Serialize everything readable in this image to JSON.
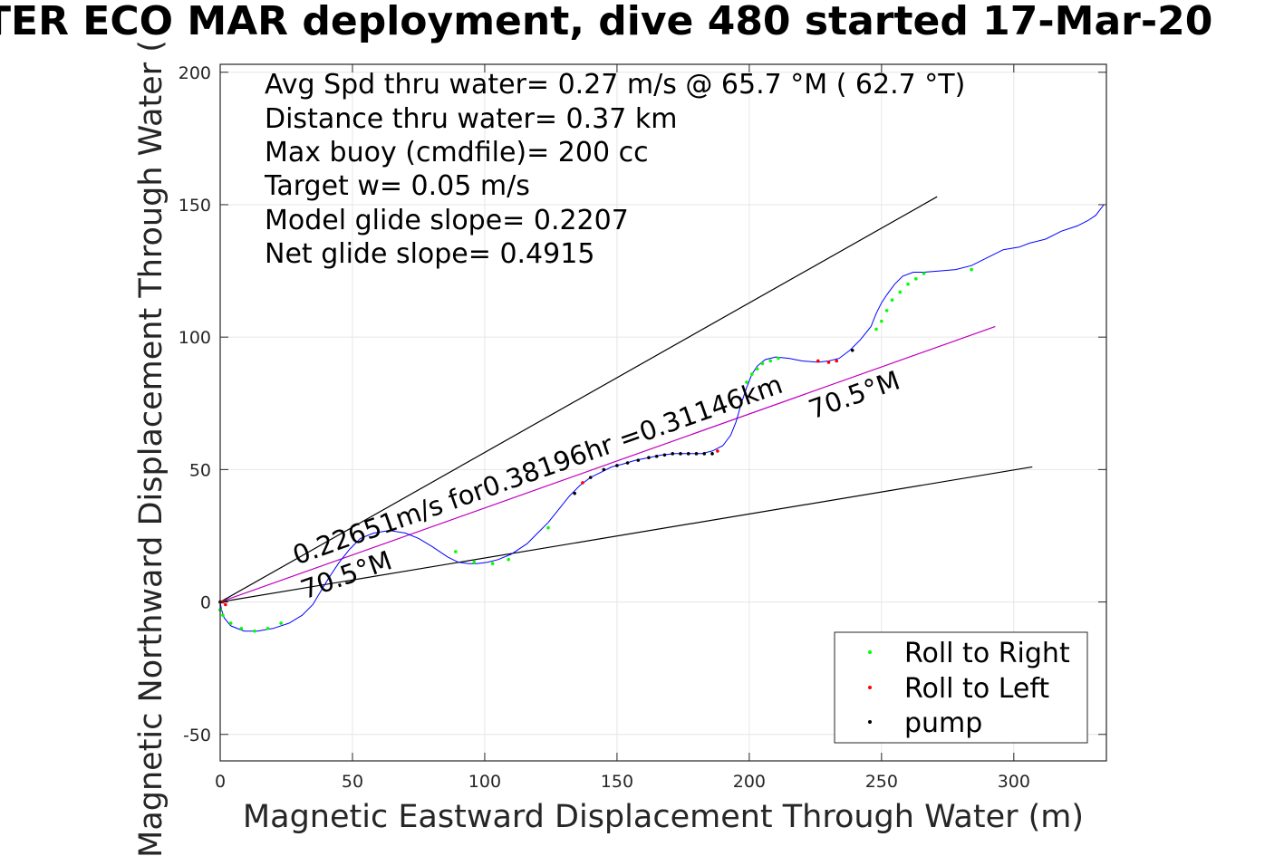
{
  "chart_data": {
    "type": "scatter",
    "title": "TER ECO MAR deployment, dive 480 started 17-Mar-20",
    "xlabel": "Magnetic Eastward Displacement Through Water (m)",
    "ylabel": "Magnetic Northward Displacement Through Water (",
    "xlim": [
      0,
      335
    ],
    "ylim": [
      -60,
      203
    ],
    "xticks": [
      0,
      50,
      100,
      150,
      200,
      250,
      300
    ],
    "yticks": [
      -50,
      0,
      50,
      100,
      150,
      200
    ],
    "grid": true,
    "legend_position": "bottom-right",
    "info_lines": [
      "Avg Spd thru water=  0.27 m/s @  65.7 °M ( 62.7 °T)",
      "Distance thru water=  0.37 km",
      "Max buoy (cmdfile)= 200 cc",
      "Target w= 0.05 m/s",
      "Model glide slope= 0.2207",
      "Net glide slope= 0.4915"
    ],
    "annotations": {
      "speed_line": "0.22651m/s for0.38196hr =0.31146km",
      "heading_near": "70.5°M",
      "heading_far": "70.5°M"
    },
    "lines": [
      {
        "role": "upper-envelope",
        "color": "#000000",
        "points": [
          [
            0,
            0
          ],
          [
            271,
            153
          ]
        ]
      },
      {
        "role": "lower-envelope",
        "color": "#000000",
        "points": [
          [
            0,
            0
          ],
          [
            307,
            51
          ]
        ]
      },
      {
        "role": "mean-heading",
        "color": "#bf00bf",
        "points": [
          [
            0,
            0
          ],
          [
            293,
            104
          ]
        ]
      }
    ],
    "series": [
      {
        "name": "track",
        "color": "#0000ff",
        "x": [
          0,
          0.5,
          1.5,
          4,
          9,
          14,
          20,
          26,
          31,
          35,
          38,
          41,
          45,
          49,
          53,
          58,
          64,
          70,
          75,
          80,
          86,
          90,
          94,
          97,
          101,
          105,
          110,
          116,
          120,
          124,
          128,
          132,
          136,
          140,
          144,
          148,
          152,
          157,
          162,
          167,
          172,
          177,
          182,
          186,
          190,
          193,
          195,
          197,
          199,
          201,
          203,
          206,
          210,
          215,
          220,
          226,
          230,
          234,
          238,
          242,
          246,
          248,
          250,
          252,
          255,
          258,
          262,
          266,
          272,
          278,
          284,
          290,
          296,
          302,
          306,
          312,
          318,
          324,
          328,
          331,
          334
        ],
        "y": [
          0,
          -3,
          -6,
          -9,
          -11,
          -11,
          -10,
          -8,
          -5,
          -1,
          4,
          9,
          15,
          20,
          24,
          26,
          27,
          26,
          24,
          21,
          17,
          15,
          14.5,
          14.5,
          15,
          16,
          18,
          22,
          26,
          30,
          35,
          40,
          44,
          47,
          49,
          51,
          52,
          53.5,
          54.5,
          55.5,
          56,
          56,
          56,
          57,
          59,
          63,
          68,
          75,
          81,
          86,
          89,
          91.5,
          92.5,
          92,
          91,
          90.5,
          91,
          92,
          95,
          99,
          104,
          109,
          113,
          116,
          120,
          123,
          124.5,
          124.5,
          125,
          125.5,
          127,
          130,
          133,
          134,
          135.5,
          137,
          140,
          142,
          144,
          146,
          150
        ]
      },
      {
        "name": "Roll to Right",
        "color": "#00ff00",
        "x": [
          0,
          1,
          4,
          8,
          13,
          18,
          23,
          89,
          96,
          103,
          109,
          124,
          199,
          201,
          203,
          205,
          208,
          211,
          248,
          250,
          252,
          254,
          257,
          260,
          263,
          266,
          284
        ],
        "y": [
          -3,
          -5,
          -8,
          -10,
          -11,
          -10,
          -8,
          19,
          15,
          14.5,
          16,
          28,
          83,
          86,
          88,
          90,
          91,
          92,
          103,
          106,
          110,
          114,
          117,
          120,
          122,
          124,
          125.5
        ]
      },
      {
        "name": "Roll to Left",
        "color": "#ff0000",
        "x": [
          0,
          1,
          2,
          137,
          188,
          226,
          230,
          233
        ],
        "y": [
          0,
          0,
          -1,
          45,
          57,
          91,
          90.5,
          91
        ]
      },
      {
        "name": "pump",
        "color": "#000000",
        "x": [
          0,
          134,
          140,
          145,
          150,
          154,
          158,
          162,
          165,
          168,
          171,
          174,
          177,
          180,
          183,
          186,
          239
        ],
        "y": [
          0,
          41,
          47,
          50,
          51.5,
          52.5,
          53.5,
          54.5,
          55,
          55.5,
          56,
          56,
          56,
          56,
          56,
          56,
          95
        ]
      }
    ]
  }
}
